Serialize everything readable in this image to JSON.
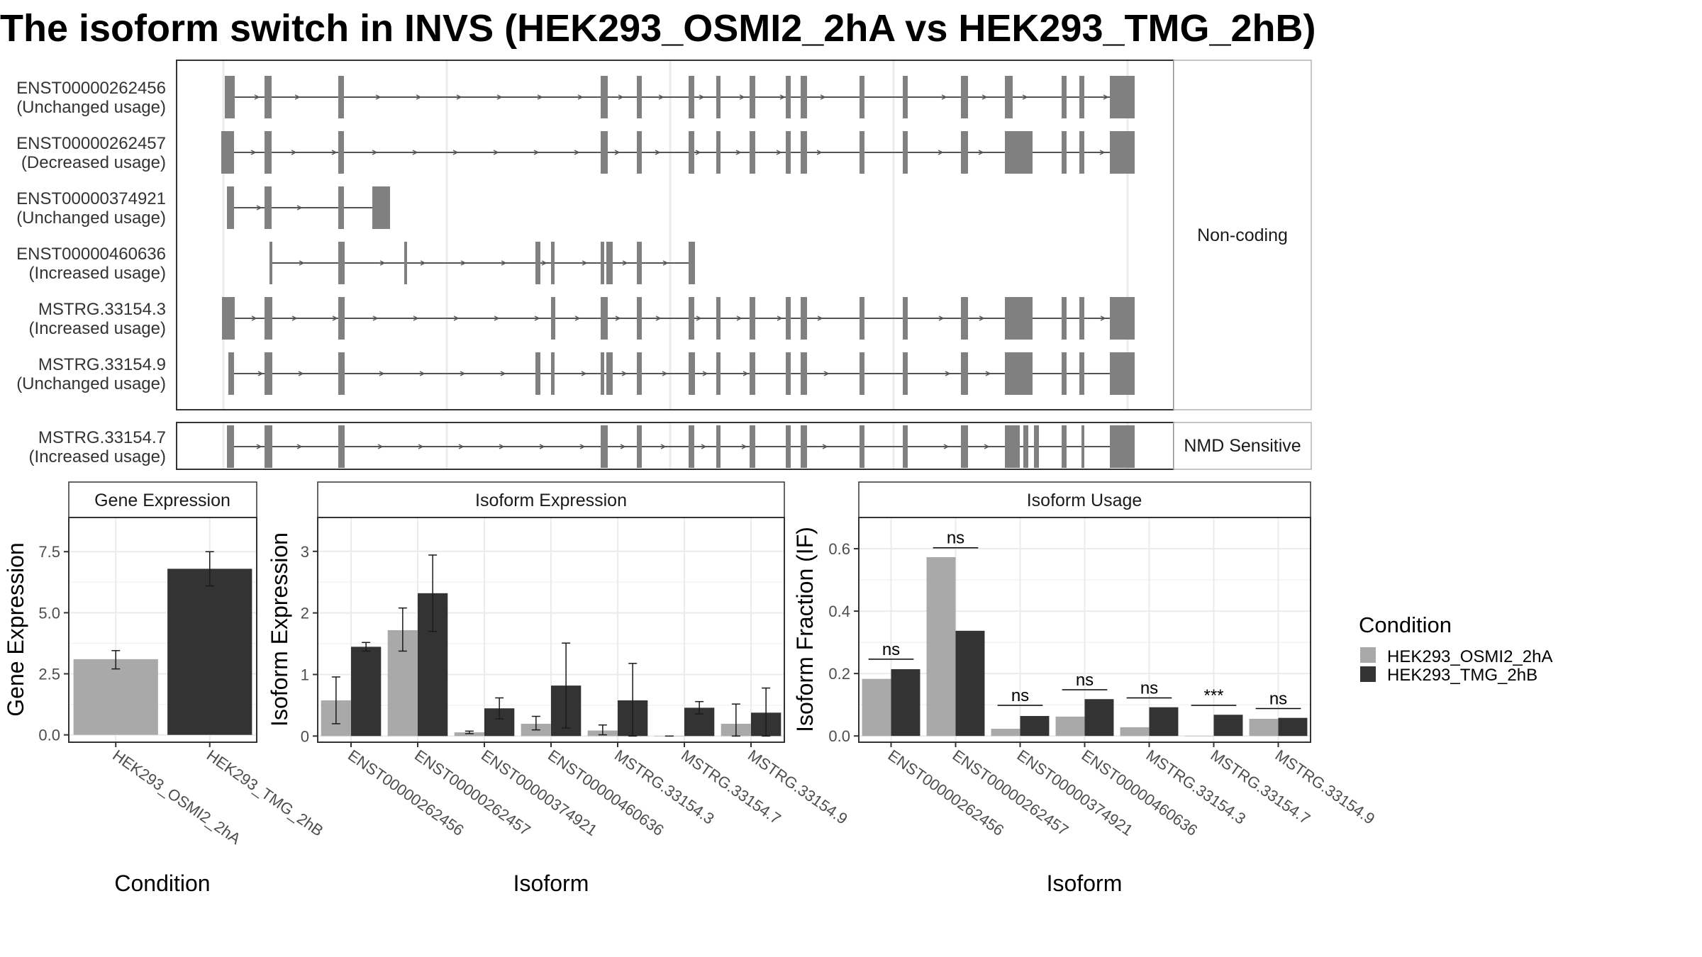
{
  "title": "The isoform switch in INVS (HEK293_OSMI2_2hA vs HEK293_TMG_2hB)",
  "colors": {
    "cond_a": "#a9a9a9",
    "cond_b": "#333333",
    "exon": "#808080",
    "panel_border": "#333333",
    "grid": "#ebebeb",
    "strip_fill": "#ffffff"
  },
  "legend": {
    "title": "Condition",
    "entries": [
      "HEK293_OSMI2_2hA",
      "HEK293_TMG_2hB"
    ]
  },
  "transcripts": {
    "groups": [
      {
        "label": "Non-coding",
        "rows": [
          {
            "id": "ENST00000262456",
            "usage": "(Unchanged usage)"
          },
          {
            "id": "ENST00000262457",
            "usage": "(Decreased usage)"
          },
          {
            "id": "ENST00000374921",
            "usage": "(Unchanged usage)"
          },
          {
            "id": "ENST00000460636",
            "usage": "(Increased usage)"
          },
          {
            "id": "MSTRG.33154.3",
            "usage": "(Increased usage)"
          },
          {
            "id": "MSTRG.33154.9",
            "usage": "(Unchanged usage)"
          }
        ]
      },
      {
        "label": "NMD Sensitive",
        "rows": [
          {
            "id": "MSTRG.33154.7",
            "usage": "(Increased usage)"
          }
        ]
      }
    ]
  },
  "chart_data": [
    {
      "type": "bar",
      "title": "Gene Expression",
      "xlabel": "Condition",
      "ylabel": "Gene Expression",
      "categories": [
        "HEK293_OSMI2_2hA",
        "HEK293_TMG_2hB"
      ],
      "values": [
        3.1,
        6.8
      ],
      "errors": [
        [
          2.7,
          3.45
        ],
        [
          6.1,
          7.5
        ]
      ],
      "ylim": [
        -0.3,
        8.9
      ],
      "yticks": [
        0.0,
        2.5,
        5.0,
        7.5
      ],
      "ytick_labels": [
        "0.0",
        "2.5",
        "5.0",
        "7.5"
      ],
      "grid": true
    },
    {
      "type": "bar",
      "title": "Isoform Expression",
      "xlabel": "Isoform",
      "ylabel": "Isoform Expression",
      "categories": [
        "ENST00000262456",
        "ENST00000262457",
        "ENST00000374921",
        "ENST00000460636",
        "MSTRG.33154.3",
        "MSTRG.33154.7",
        "MSTRG.33154.9"
      ],
      "series": [
        {
          "name": "HEK293_OSMI2_2hA",
          "values": [
            0.58,
            1.72,
            0.06,
            0.2,
            0.09,
            0.0,
            0.2
          ],
          "errors": [
            [
              0.2,
              0.96
            ],
            [
              1.38,
              2.08
            ],
            [
              0.04,
              0.08
            ],
            [
              0.1,
              0.32
            ],
            [
              0.02,
              0.18
            ],
            [
              0.0,
              0.0
            ],
            [
              0.0,
              0.52
            ]
          ]
        },
        {
          "name": "HEK293_TMG_2hB",
          "values": [
            1.45,
            2.32,
            0.45,
            0.82,
            0.58,
            0.46,
            0.38
          ],
          "errors": [
            [
              1.38,
              1.52
            ],
            [
              1.7,
              2.94
            ],
            [
              0.28,
              0.62
            ],
            [
              0.13,
              1.51
            ],
            [
              0.0,
              1.18
            ],
            [
              0.36,
              0.56
            ],
            [
              0.0,
              0.78
            ]
          ]
        }
      ],
      "ylim": [
        -0.1,
        3.55
      ],
      "yticks": [
        0,
        1,
        2,
        3
      ],
      "ytick_labels": [
        "0",
        "1",
        "2",
        "3"
      ],
      "grid": true
    },
    {
      "type": "bar",
      "title": "Isoform Usage",
      "xlabel": "Isoform",
      "ylabel": "Isoform Fraction (IF)",
      "categories": [
        "ENST00000262456",
        "ENST00000262457",
        "ENST00000374921",
        "ENST00000460636",
        "MSTRG.33154.3",
        "MSTRG.33154.7",
        "MSTRG.33154.9"
      ],
      "series": [
        {
          "name": "HEK293_OSMI2_2hA",
          "values": [
            0.183,
            0.573,
            0.023,
            0.062,
            0.028,
            0.0,
            0.055
          ]
        },
        {
          "name": "HEK293_TMG_2hB",
          "values": [
            0.214,
            0.337,
            0.064,
            0.118,
            0.092,
            0.068,
            0.058
          ]
        }
      ],
      "significance": [
        "ns",
        "ns",
        "ns",
        "ns",
        "ns",
        "***",
        "ns"
      ],
      "sig_line_y": [
        0.246,
        0.603,
        0.098,
        0.148,
        0.122,
        0.098,
        0.088
      ],
      "ylim": [
        -0.02,
        0.7
      ],
      "yticks": [
        0.0,
        0.2,
        0.4,
        0.6
      ],
      "ytick_labels": [
        "0.0",
        "0.2",
        "0.4",
        "0.6"
      ],
      "grid": true
    }
  ]
}
